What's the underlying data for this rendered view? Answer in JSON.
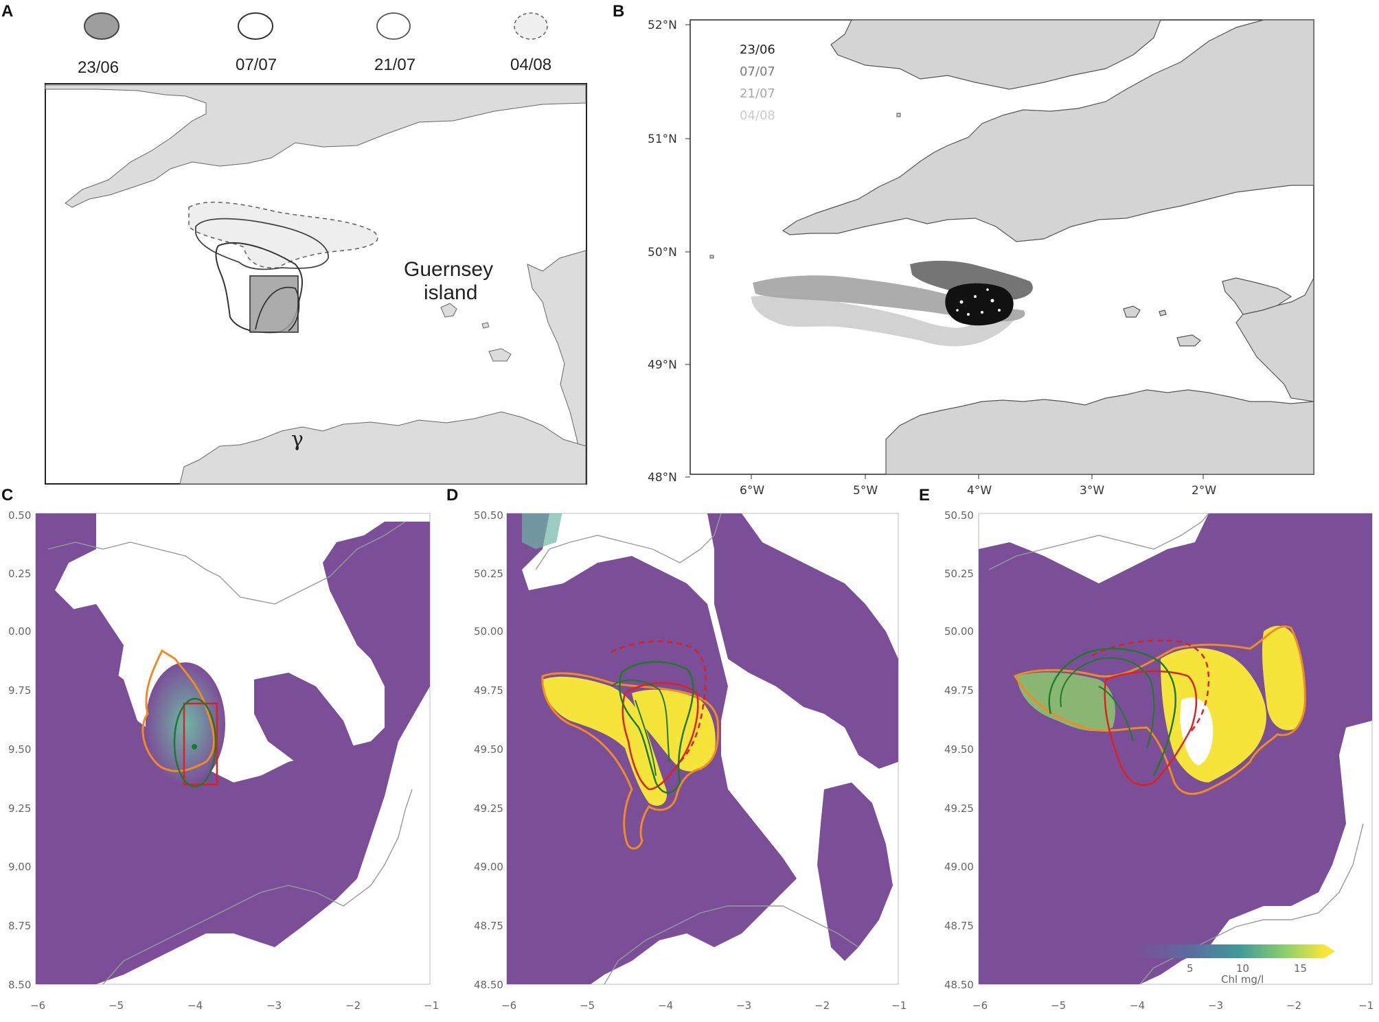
{
  "panels": {
    "A": {
      "label": "A",
      "legend": [
        {
          "date": "23/06",
          "style": "filled-gray"
        },
        {
          "date": "07/07",
          "style": "outline"
        },
        {
          "date": "21/07",
          "style": "outline-light"
        },
        {
          "date": "04/08",
          "style": "dashed-light"
        }
      ],
      "annotation_line1": "Guernsey",
      "annotation_line2": "island",
      "glyph": "γ"
    },
    "B": {
      "label": "B",
      "legend": [
        {
          "date": "23/06",
          "color": "#222222"
        },
        {
          "date": "07/07",
          "color": "#7a7a7a"
        },
        {
          "date": "21/07",
          "color": "#a8a8a8"
        },
        {
          "date": "04/08",
          "color": "#cccccc"
        }
      ],
      "lat_ticks": [
        "52°N",
        "51°N",
        "50°N",
        "49°N",
        "48°N"
      ],
      "lon_ticks": [
        "6°W",
        "5°W",
        "4°W",
        "3°W",
        "2°W"
      ]
    },
    "C": {
      "label": "C",
      "y_ticks": [
        "0.50",
        "0.25",
        "0.00",
        "9.75",
        "9.50",
        "9.25",
        "9.00",
        "8.75",
        "8.50"
      ],
      "x_ticks": [
        "−6",
        "−5",
        "−4",
        "−3",
        "−2",
        "−1"
      ]
    },
    "D": {
      "label": "D",
      "y_ticks": [
        "50.50",
        "50.25",
        "50.00",
        "49.75",
        "49.50",
        "49.25",
        "49.00",
        "48.75",
        "48.50"
      ],
      "x_ticks": [
        "−6",
        "−5",
        "−4",
        "−3",
        "−2",
        "−1"
      ]
    },
    "E": {
      "label": "E",
      "y_ticks": [
        "50.50",
        "50.25",
        "50.00",
        "49.75",
        "49.50",
        "49.25",
        "49.00",
        "48.75",
        "48.50"
      ],
      "x_ticks": [
        "−6",
        "−5",
        "−4",
        "−3",
        "−2",
        "−1"
      ],
      "colorbar": {
        "ticks": [
          "5",
          "10",
          "15"
        ],
        "label": "Chl mg/l",
        "range": [
          0,
          17
        ],
        "colormap": "viridis"
      }
    }
  },
  "colors": {
    "land": "#d4d4d4",
    "chl_low": "#7b4f98",
    "chl_mid": "#4a8fa0",
    "chl_high": "#f5e43a",
    "contour_orange": "#f08a24",
    "contour_red": "#e02020",
    "contour_green": "#1e7a2a"
  }
}
